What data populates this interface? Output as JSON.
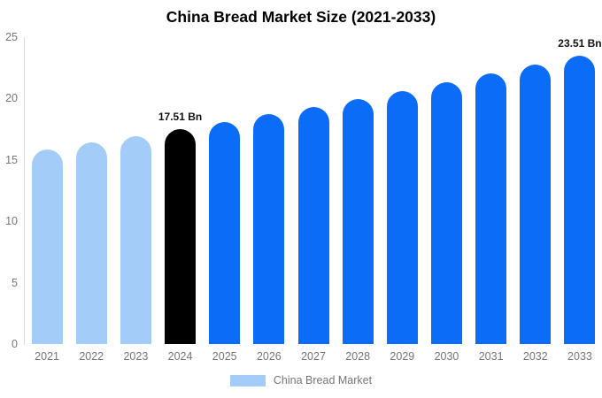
{
  "title": "China Bread Market Size (2021-2033)",
  "legend": {
    "label": "China Bread Market",
    "swatch_color": "#a4ccf9"
  },
  "colors": {
    "past": "#a4ccf9",
    "current": "#000000",
    "forecast": "#0a6cf7",
    "axis_text": "#757575",
    "axis_line": "#dcdcdc",
    "title_text": "#000000",
    "annotation_text": "#111111",
    "background": "#ffffff"
  },
  "chart_data": {
    "type": "bar",
    "title": "China Bread Market Size (2021-2033)",
    "xlabel": "",
    "ylabel": "",
    "unit": "Bn",
    "categories": [
      "2021",
      "2022",
      "2023",
      "2024",
      "2025",
      "2026",
      "2027",
      "2028",
      "2029",
      "2030",
      "2031",
      "2032",
      "2033"
    ],
    "values": [
      15.87,
      16.4,
      16.95,
      17.51,
      18.09,
      18.7,
      19.32,
      19.96,
      20.63,
      21.31,
      22.02,
      22.76,
      23.51
    ],
    "bar_roles": [
      "past",
      "past",
      "past",
      "current",
      "forecast",
      "forecast",
      "forecast",
      "forecast",
      "forecast",
      "forecast",
      "forecast",
      "forecast",
      "forecast"
    ],
    "annotations": [
      {
        "index": 3,
        "text": "17.51 Bn"
      },
      {
        "index": 12,
        "text": "23.51 Bn"
      }
    ],
    "y_ticks": [
      0,
      5,
      10,
      15,
      20,
      25
    ],
    "ylim": [
      0,
      25
    ],
    "grid": false,
    "legend_position": "bottom",
    "legend_entries": [
      "China Bread Market"
    ]
  }
}
